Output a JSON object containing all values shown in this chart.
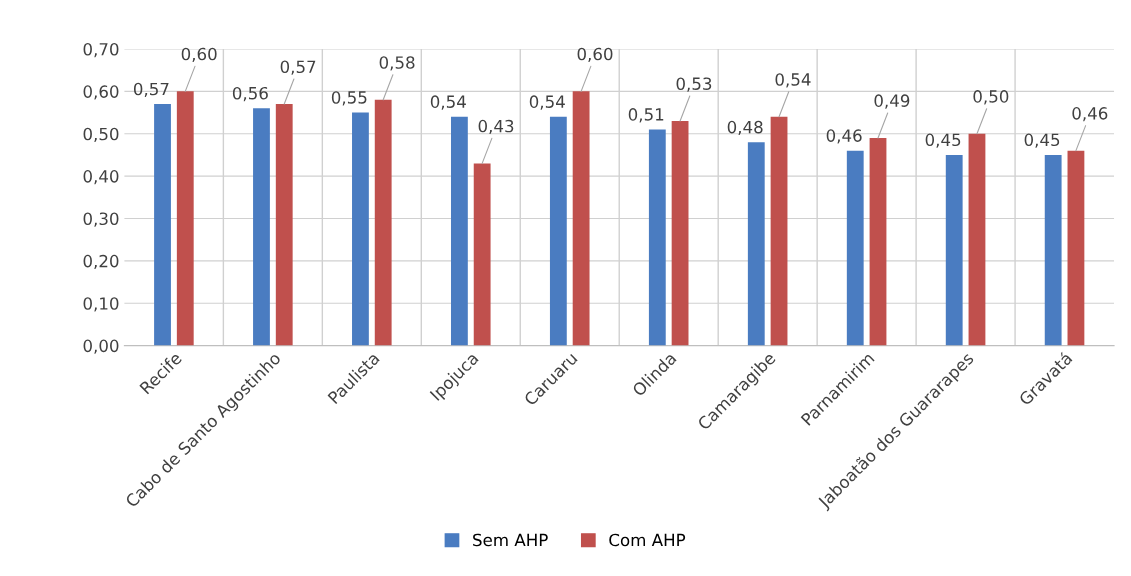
{
  "chart_data": {
    "type": "bar",
    "categories": [
      "Recife",
      "Cabo de Santo Agostinho",
      "Paulista",
      "Ipojuca",
      "Caruaru",
      "Olinda",
      "Camaragibe",
      "Parnamirim",
      "Jaboatão dos Guararapes",
      "Gravatá"
    ],
    "series": [
      {
        "name": "Sem AHP",
        "color": "#4a7cc1",
        "values": [
          0.57,
          0.56,
          0.55,
          0.54,
          0.54,
          0.51,
          0.48,
          0.46,
          0.45,
          0.45
        ],
        "value_labels": [
          "0,57",
          "0,56",
          "0,55",
          "0,54",
          "0,54",
          "0,51",
          "0,48",
          "0,46",
          "0,45",
          "0,45"
        ]
      },
      {
        "name": "Com AHP",
        "color": "#c0504d",
        "values": [
          0.6,
          0.57,
          0.58,
          0.43,
          0.6,
          0.53,
          0.54,
          0.49,
          0.5,
          0.46
        ],
        "value_labels": [
          "0,60",
          "0,57",
          "0,58",
          "0,43",
          "0,60",
          "0,53",
          "0,54",
          "0,49",
          "0,50",
          "0,46"
        ]
      }
    ],
    "ylim": [
      0,
      0.7
    ],
    "yticks": [
      {
        "value": 0,
        "label": "0,00"
      },
      {
        "value": 0.1,
        "label": "0,10"
      },
      {
        "value": 0.2,
        "label": "0,20"
      },
      {
        "value": 0.3,
        "label": "0,30"
      },
      {
        "value": 0.4,
        "label": "0,40"
      },
      {
        "value": 0.5,
        "label": "0,50"
      },
      {
        "value": 0.6,
        "label": "0,60"
      },
      {
        "value": 0.7,
        "label": "0,70"
      }
    ],
    "grid": "y",
    "legend": "bottom"
  }
}
